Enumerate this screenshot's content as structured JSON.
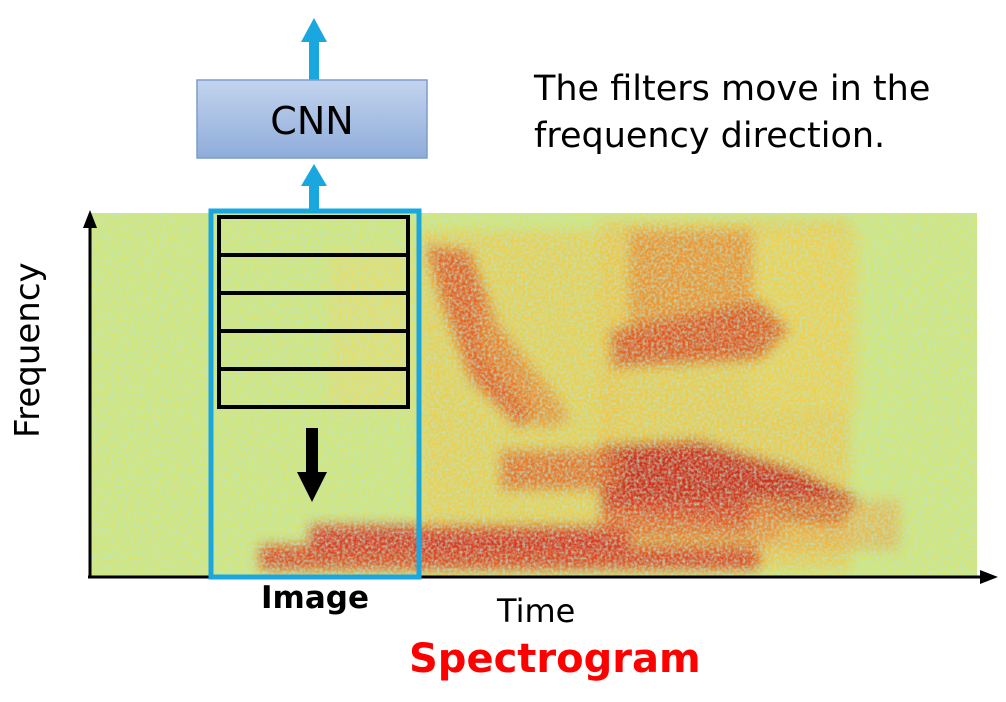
{
  "cnn": {
    "label": "CNN"
  },
  "filter_caption": "The filters move in the frequency direction.",
  "axes": {
    "x_label": "Time",
    "y_label": "Frequency"
  },
  "image_label": "Image",
  "spectrogram_label": "Spectrogram",
  "colors": {
    "spectrogram_low": "#7fd3c0",
    "spectrogram_mid": "#f4e43a",
    "spectrogram_high": "#d01a0c",
    "image_window": "#1aa7e0",
    "arrow_blue": "#1aa7e0",
    "cnn_box_top": "#b9cdea",
    "cnn_box_bottom": "#8aa8d8",
    "spectrogram_title": "#ff0000"
  }
}
